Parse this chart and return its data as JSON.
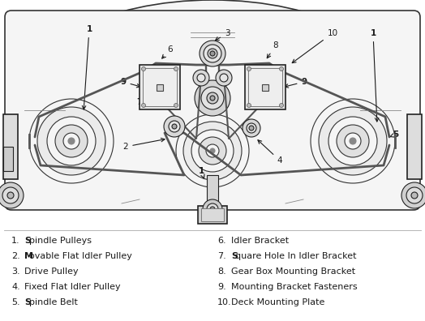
{
  "bg_color": "#ffffff",
  "diagram_color": "#1a1a1a",
  "line_color": "#222222",
  "belt_color": "#555555",
  "pulley_fill": "#e8e8e8",
  "pulley_ring": "#c8c8c8",
  "deck_fill": "#f5f5f5",
  "deck_stroke": "#333333",
  "legend_items_left": [
    [
      "1.",
      "S",
      "pindle Pulleys"
    ],
    [
      "2.",
      "M",
      "ovable Flat Idler Pulley"
    ],
    [
      "3.",
      "",
      "Drive Pulley"
    ],
    [
      "4.",
      "",
      "Fixed Flat Idler Pulley"
    ],
    [
      "5.",
      "S",
      "pindle Belt"
    ]
  ],
  "legend_items_right": [
    [
      "6.",
      "",
      "Idler Bracket"
    ],
    [
      "7.",
      "S",
      "quare Hole In Idler Bracket"
    ],
    [
      "8.",
      "",
      "Gear Box Mounting Bracket"
    ],
    [
      "9.",
      "",
      "Mounting Bracket Fasteners"
    ],
    [
      "10.",
      "",
      "Deck Mounting Plate"
    ]
  ],
  "fig_width": 5.24,
  "fig_height": 3.96,
  "dpi": 100
}
